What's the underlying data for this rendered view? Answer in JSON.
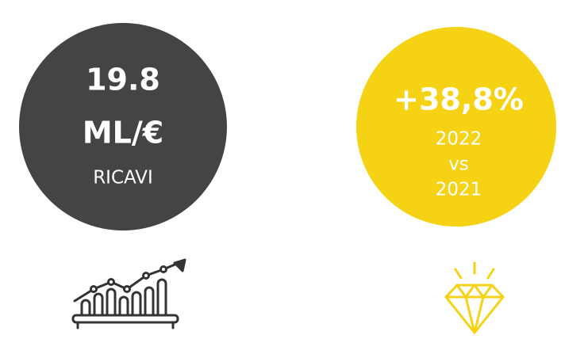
{
  "cards": [
    {
      "value": "19.8",
      "unit": "ML/€",
      "label": "RICAVI"
    },
    {
      "value": "+38,8%",
      "lines": [
        "2022",
        "vs",
        "2021"
      ]
    }
  ]
}
